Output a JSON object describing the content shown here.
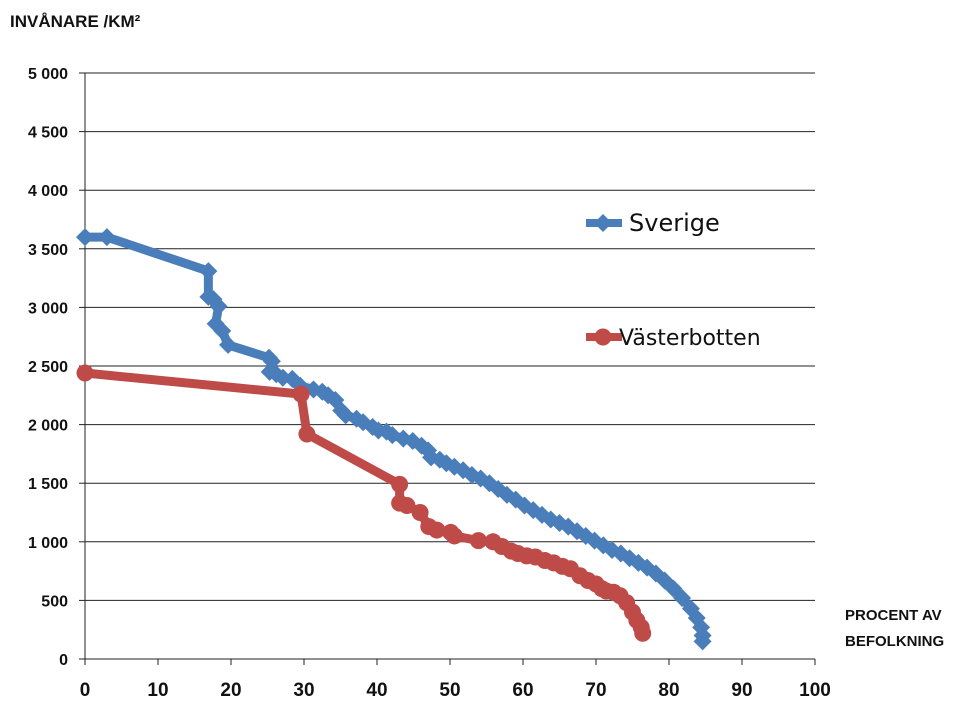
{
  "chart_data": {
    "type": "line",
    "ylabel": "INVÅNARE /KM²",
    "xlabel": "PROCENT AV BEFOLKNING",
    "xlim": [
      0,
      100
    ],
    "ylim": [
      0,
      5000
    ],
    "xticks": [
      "0",
      "10",
      "20",
      "30",
      "40",
      "50",
      "60",
      "70",
      "80",
      "90",
      "100"
    ],
    "yticks": [
      "0",
      "500",
      "1 000",
      "1 500",
      "2 000",
      "2 500",
      "3 000",
      "3 500",
      "4 000",
      "4 500",
      "5 000"
    ],
    "grid": "horizontal",
    "legend_position": "right",
    "series": [
      {
        "name": "Sverige",
        "color": "#4a7ebb",
        "marker": "diamond",
        "points": [
          [
            0,
            3600
          ],
          [
            3,
            3600
          ],
          [
            16.9,
            3310
          ],
          [
            16.9,
            3090
          ],
          [
            17.6,
            3070
          ],
          [
            18.3,
            3010
          ],
          [
            17.9,
            2860
          ],
          [
            18.8,
            2800
          ],
          [
            19.6,
            2680
          ],
          [
            25.2,
            2570
          ],
          [
            25.6,
            2540
          ],
          [
            25.3,
            2450
          ],
          [
            26.2,
            2430
          ],
          [
            27.1,
            2400
          ],
          [
            28.4,
            2390
          ],
          [
            29.5,
            2330
          ],
          [
            31.3,
            2300
          ],
          [
            32.5,
            2280
          ],
          [
            33.3,
            2250
          ],
          [
            34.3,
            2210
          ],
          [
            35.1,
            2120
          ],
          [
            35.7,
            2080
          ],
          [
            37.2,
            2050
          ],
          [
            38.1,
            2020
          ],
          [
            39.4,
            1980
          ],
          [
            40.2,
            1950
          ],
          [
            41.3,
            1940
          ],
          [
            42.1,
            1910
          ],
          [
            43.6,
            1880
          ],
          [
            44.9,
            1860
          ],
          [
            46.1,
            1820
          ],
          [
            47.0,
            1780
          ],
          [
            47.4,
            1720
          ],
          [
            48.6,
            1700
          ],
          [
            49.5,
            1670
          ],
          [
            50.6,
            1640
          ],
          [
            51.8,
            1610
          ],
          [
            53.0,
            1570
          ],
          [
            54.2,
            1540
          ],
          [
            55.4,
            1500
          ],
          [
            56.6,
            1450
          ],
          [
            57.8,
            1400
          ],
          [
            59.0,
            1360
          ],
          [
            60.2,
            1310
          ],
          [
            61.4,
            1270
          ],
          [
            62.6,
            1230
          ],
          [
            63.8,
            1190
          ],
          [
            65.0,
            1160
          ],
          [
            66.2,
            1130
          ],
          [
            67.4,
            1090
          ],
          [
            68.6,
            1050
          ],
          [
            69.8,
            1010
          ],
          [
            71.0,
            970
          ],
          [
            72.2,
            930
          ],
          [
            73.4,
            900
          ],
          [
            74.6,
            860
          ],
          [
            75.8,
            820
          ],
          [
            77.0,
            780
          ],
          [
            78.2,
            730
          ],
          [
            79.4,
            670
          ],
          [
            80.6,
            600
          ],
          [
            81.8,
            520
          ],
          [
            83.0,
            430
          ],
          [
            83.8,
            350
          ],
          [
            84.4,
            270
          ],
          [
            84.6,
            200
          ],
          [
            84.6,
            150
          ]
        ]
      },
      {
        "name": "Västerbotten",
        "color": "#be4b48",
        "marker": "circle",
        "points": [
          [
            0,
            2440
          ],
          [
            29.6,
            2260
          ],
          [
            30.4,
            1920
          ],
          [
            43.1,
            1490
          ],
          [
            43.1,
            1330
          ],
          [
            44.1,
            1310
          ],
          [
            45.9,
            1250
          ],
          [
            47.1,
            1130
          ],
          [
            48.2,
            1100
          ],
          [
            50.1,
            1080
          ],
          [
            50.6,
            1050
          ],
          [
            53.9,
            1010
          ],
          [
            55.9,
            1000
          ],
          [
            57.1,
            960
          ],
          [
            58.4,
            920
          ],
          [
            59.3,
            900
          ],
          [
            60.5,
            880
          ],
          [
            61.7,
            870
          ],
          [
            63.0,
            840
          ],
          [
            64.2,
            820
          ],
          [
            65.4,
            790
          ],
          [
            66.5,
            770
          ],
          [
            67.8,
            710
          ],
          [
            68.9,
            670
          ],
          [
            70.0,
            640
          ],
          [
            70.8,
            600
          ],
          [
            71.4,
            580
          ],
          [
            72.4,
            570
          ],
          [
            73.3,
            540
          ],
          [
            74.2,
            480
          ],
          [
            75.0,
            400
          ],
          [
            75.6,
            330
          ],
          [
            76.2,
            270
          ],
          [
            76.4,
            220
          ]
        ]
      }
    ]
  }
}
